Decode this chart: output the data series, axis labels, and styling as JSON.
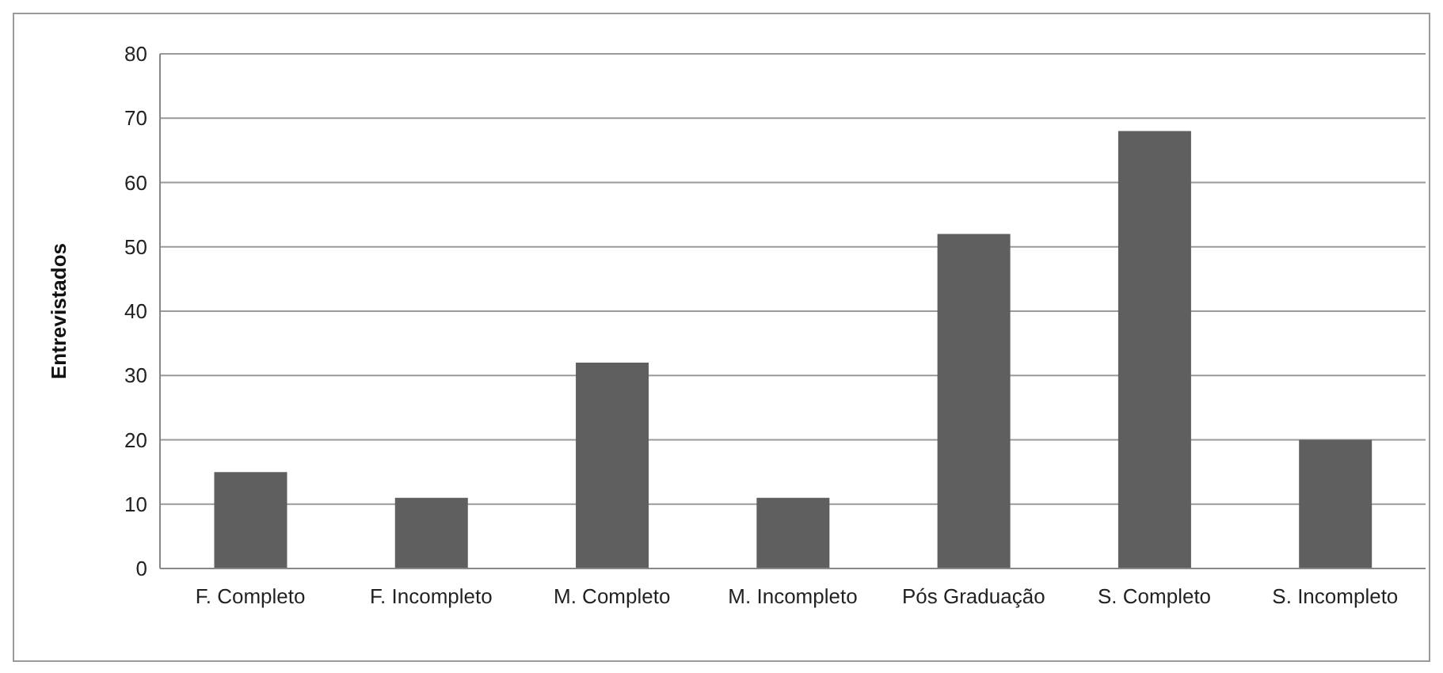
{
  "chart_data": {
    "type": "bar",
    "ylabel": "Entrevistados",
    "categories": [
      "F. Completo",
      "F. Incompleto",
      "M. Completo",
      "M. Incompleto",
      "Pós Graduação",
      "S. Completo",
      "S. Incompleto"
    ],
    "values": [
      15,
      11,
      32,
      11,
      52,
      68,
      20
    ],
    "color": "#5f5f5f",
    "ylim": [
      0,
      80
    ],
    "yticks": [
      0,
      10,
      20,
      30,
      40,
      50,
      60,
      70,
      80
    ],
    "grid": "y"
  }
}
